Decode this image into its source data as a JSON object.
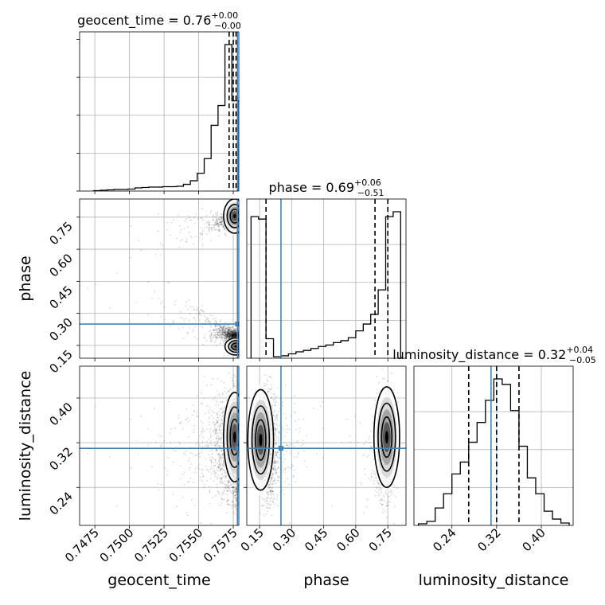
{
  "chart_data": {
    "type": "corner",
    "parameters": [
      "geocent_time",
      "phase",
      "luminosity_distance"
    ],
    "truths": {
      "geocent_time": 0.7578,
      "phase": 0.25,
      "luminosity_distance": 0.31
    },
    "quantile_levels": [
      0.16,
      0.5,
      0.84
    ],
    "grid": true,
    "ranges": {
      "geocent_time": [
        0.7464,
        0.7579
      ],
      "phase": [
        0.09,
        0.835
      ],
      "luminosity_distance": [
        0.172,
        0.457
      ]
    },
    "axis_labels": {
      "geocent_time": "geocent_time",
      "phase": "phase",
      "luminosity_distance": "luminosity_distance"
    },
    "tick_labels": {
      "geocent_time": [
        "0.7475",
        "0.7500",
        "0.7525",
        "0.7550",
        "0.7575"
      ],
      "phase": [
        "0.15",
        "0.30",
        "0.45",
        "0.60",
        "0.75"
      ],
      "luminosity_distance": [
        "0.24",
        "0.32",
        "0.40"
      ]
    },
    "ticks": {
      "geocent_time": [
        0.7475,
        0.75,
        0.7525,
        0.755,
        0.7575
      ],
      "phase": [
        0.15,
        0.3,
        0.45,
        0.6,
        0.75
      ],
      "luminosity_distance": [
        0.24,
        0.32,
        0.4
      ]
    },
    "titles": {
      "geocent_time": {
        "prefix": "geocent_time = ",
        "median": "0.76",
        "plus": "+0.00",
        "minus": "−0.00"
      },
      "phase": {
        "prefix": "phase = ",
        "median": "0.69",
        "plus": "+0.06",
        "minus": "−0.51"
      },
      "luminosity_distance": {
        "prefix": "luminosity_distance = ",
        "median": "0.32",
        "plus": "+0.04",
        "minus": "−0.05"
      }
    },
    "quantiles": {
      "geocent_time": [
        0.7572,
        0.7575,
        0.7577
      ],
      "phase": [
        0.18,
        0.69,
        0.75
      ],
      "luminosity_distance": [
        0.27,
        0.32,
        0.36
      ]
    },
    "histograms": {
      "geocent_time": {
        "edges": [
          0.7474,
          0.7479,
          0.7484,
          0.7489,
          0.7494,
          0.7499,
          0.7504,
          0.7509,
          0.7514,
          0.7519,
          0.7524,
          0.7529,
          0.7534,
          0.7539,
          0.7544,
          0.7549,
          0.7554,
          0.7559,
          0.7564,
          0.7569,
          0.7574,
          0.7579
        ],
        "counts": [
          1,
          2,
          3,
          4,
          4,
          5,
          8,
          9,
          10,
          10,
          11,
          11,
          12,
          17,
          26,
          45,
          82,
          166,
          216,
          370,
          228
        ]
      },
      "phase": {
        "edges": [
          0.11,
          0.145,
          0.18,
          0.215,
          0.25,
          0.285,
          0.32,
          0.355,
          0.39,
          0.425,
          0.46,
          0.495,
          0.53,
          0.565,
          0.6,
          0.635,
          0.67,
          0.705,
          0.74,
          0.775,
          0.81
        ],
        "counts": [
          290,
          285,
          40,
          3,
          5,
          9,
          13,
          16,
          20,
          24,
          27,
          32,
          36,
          42,
          56,
          70,
          90,
          140,
          290,
          300
        ]
      },
      "luminosity_distance": {
        "edges": [
          0.18,
          0.195,
          0.21,
          0.225,
          0.24,
          0.255,
          0.27,
          0.285,
          0.3,
          0.315,
          0.33,
          0.345,
          0.36,
          0.375,
          0.39,
          0.405,
          0.42,
          0.435,
          0.45
        ],
        "counts": [
          2,
          5,
          22,
          40,
          65,
          80,
          105,
          130,
          158,
          185,
          178,
          145,
          100,
          60,
          40,
          18,
          8,
          3
        ]
      }
    }
  }
}
